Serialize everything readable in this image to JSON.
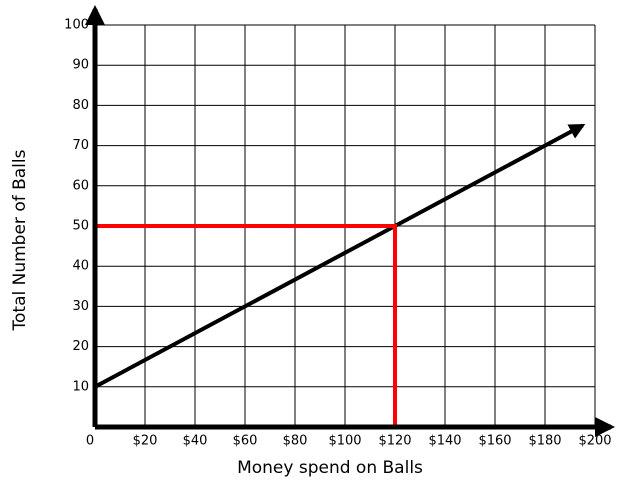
{
  "chart_data": {
    "type": "line",
    "x_label": "Money spend on Balls",
    "y_label": "Total Number of Balls",
    "x": [
      0,
      195
    ],
    "series": [
      {
        "color": "#000000",
        "values": [
          10,
          75
        ]
      }
    ],
    "reference": {
      "x": 120,
      "y": 50,
      "color": "#ff0000"
    },
    "xlim": [
      0,
      200
    ],
    "ylim": [
      0,
      100
    ],
    "xticks": [
      0,
      {
        "value": 20,
        "label": "$20"
      },
      {
        "value": 40,
        "label": "$40"
      },
      {
        "value": 60,
        "label": "$60"
      },
      {
        "value": 80,
        "label": "$80"
      },
      {
        "value": 100,
        "label": "$100"
      },
      {
        "value": 120,
        "label": "$120"
      },
      {
        "value": 140,
        "label": "$140"
      },
      {
        "value": 160,
        "label": "$160"
      },
      {
        "value": 180,
        "label": "$180"
      },
      {
        "value": 200,
        "label": "$200"
      }
    ],
    "yticks": [
      10,
      20,
      30,
      40,
      50,
      60,
      70,
      80,
      90,
      100
    ],
    "grid": true
  }
}
